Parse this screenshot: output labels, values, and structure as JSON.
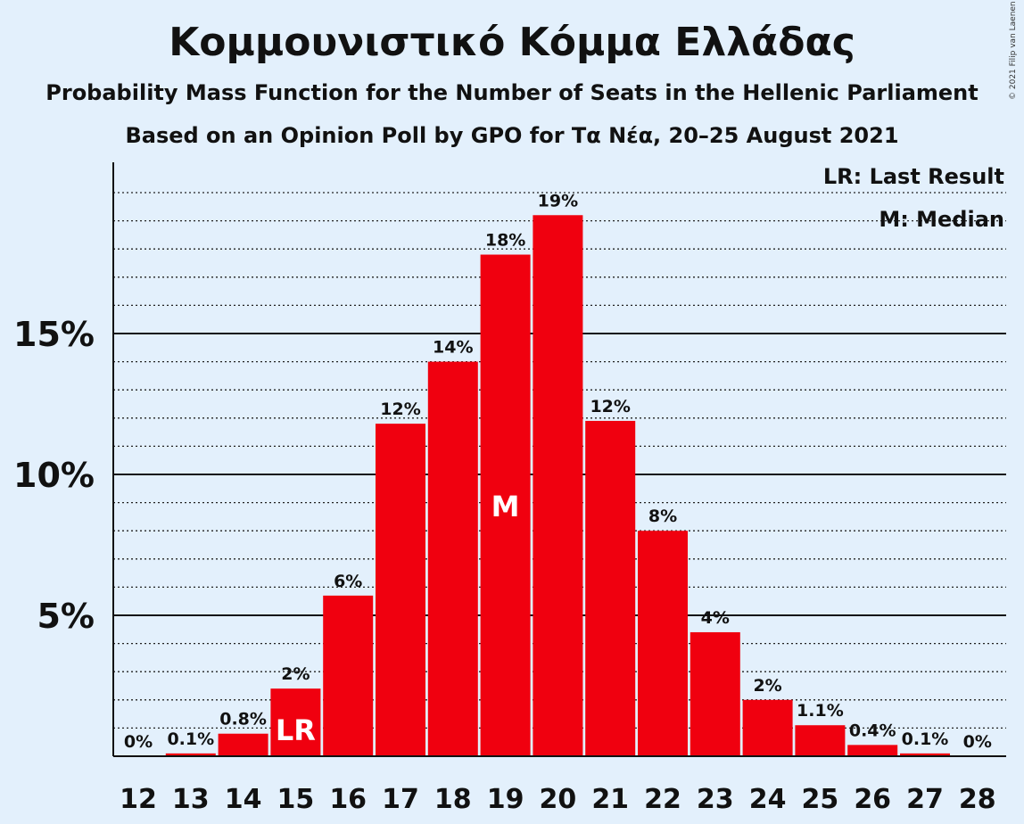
{
  "title": "Κομμουνιστικό Κόμμα Ελλάδας",
  "subtitle": "Probability Mass Function for the Number of Seats in the Hellenic Parliament",
  "subtitle2": "Based on an Opinion Poll by GPO for Τα Νέα, 20–25 August 2021",
  "copyright": "© 2021 Filip van Laenen",
  "legend": {
    "last_result": "LR: Last Result",
    "median": "M: Median"
  },
  "colors": {
    "bar": "#f0000f",
    "background": "#e3f0fc"
  },
  "chart_data": {
    "type": "bar",
    "categories": [
      "12",
      "13",
      "14",
      "15",
      "16",
      "17",
      "18",
      "19",
      "20",
      "21",
      "22",
      "23",
      "24",
      "25",
      "26",
      "27",
      "28"
    ],
    "values": [
      0,
      0.1,
      0.8,
      2.4,
      5.7,
      11.8,
      14.0,
      17.8,
      19.2,
      11.9,
      8.0,
      4.4,
      2.0,
      1.1,
      0.4,
      0.1,
      0
    ],
    "data_labels": [
      "0%",
      "0.1%",
      "0.8%",
      "2%",
      "6%",
      "12%",
      "14%",
      "18%",
      "19%",
      "12%",
      "8%",
      "4%",
      "2%",
      "1.1%",
      "0.4%",
      "0.1%",
      "0%"
    ],
    "yticks": [
      5,
      10,
      15
    ],
    "ytick_labels": [
      "5%",
      "10%",
      "15%"
    ],
    "ylim": [
      0,
      21
    ],
    "minor_grid_step": 1,
    "markers": [
      {
        "category": "15",
        "label": "LR"
      },
      {
        "category": "19",
        "label": "M"
      }
    ]
  }
}
